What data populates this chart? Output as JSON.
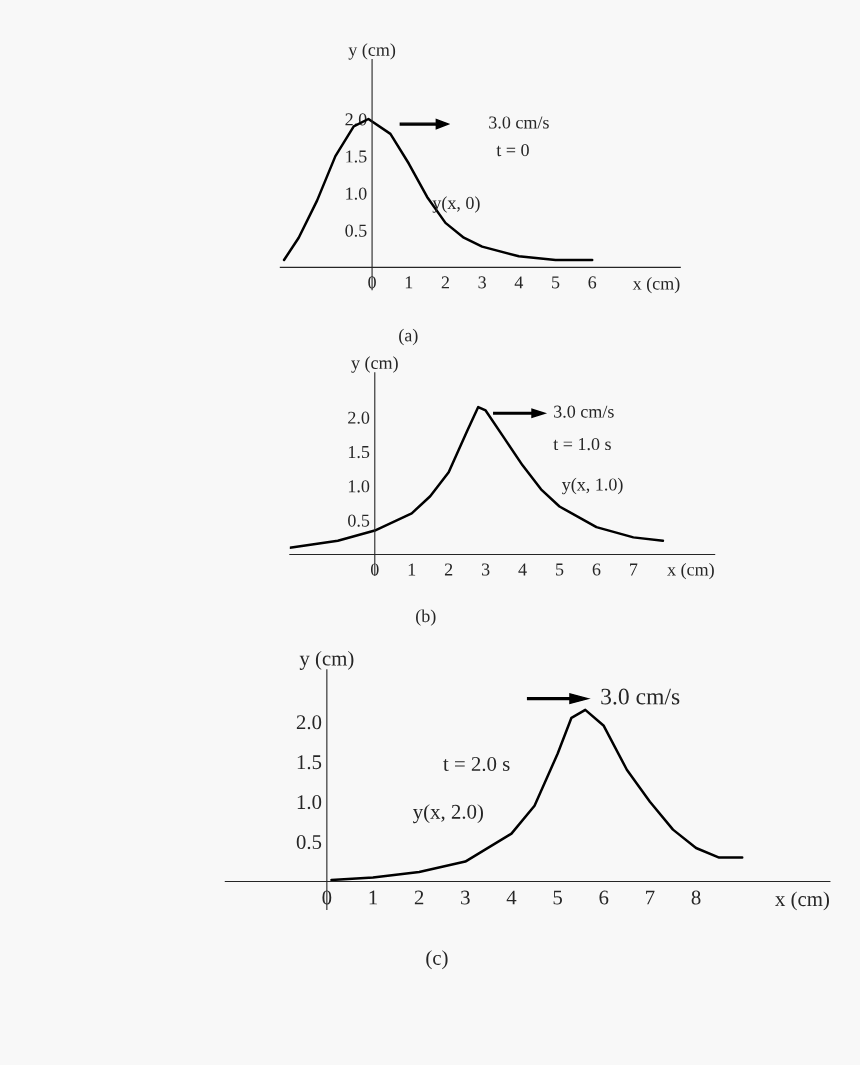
{
  "chart_data": [
    {
      "type": "line",
      "title": "(a)",
      "xlabel": "x (cm)",
      "ylabel": "y (cm)",
      "xlim": [
        -2.5,
        8.4
      ],
      "ylim": [
        -0.3,
        2.8
      ],
      "xticks": [
        0,
        1,
        2,
        3,
        4,
        5,
        6
      ],
      "yticks": [
        {
          "value": 0.5,
          "label": "0.5"
        },
        {
          "value": 1,
          "label": "1.0"
        },
        {
          "value": 1.5,
          "label": "1.5"
        },
        {
          "value": 2,
          "label": "2.0"
        }
      ],
      "annotations": [
        "3.0 cm/s",
        "t = 0",
        "y(x, 0)"
      ],
      "series": [
        {
          "color": "#000000",
          "x": [
            -2.4,
            -2,
            -1.5,
            -1,
            -0.5,
            -0.1,
            0.5,
            1,
            1.5,
            2,
            2.5,
            3,
            4,
            5,
            6
          ],
          "values": [
            0.1,
            0.4,
            0.9,
            1.5,
            1.9,
            2.0,
            1.8,
            1.4,
            0.95,
            0.6,
            0.4,
            0.28,
            0.15,
            0.1,
            0.1
          ]
        }
      ]
    },
    {
      "type": "line",
      "title": "(b)",
      "xlabel": "x (cm)",
      "ylabel": "y (cm)",
      "xlim": [
        -2.3,
        9.2
      ],
      "ylim": [
        -0.3,
        2.65
      ],
      "xticks": [
        0,
        1,
        2,
        3,
        4,
        5,
        6,
        7
      ],
      "yticks": [
        {
          "value": 0.5,
          "label": "0.5"
        },
        {
          "value": 1,
          "label": "1.0"
        },
        {
          "value": 1.5,
          "label": "1.5"
        },
        {
          "value": 2,
          "label": "2.0"
        }
      ],
      "annotations": [
        "3.0 cm/s",
        "t = 1.0 s",
        "y(x, 1.0)"
      ],
      "series": [
        {
          "color": "#000000",
          "x": [
            -2.3,
            -1,
            0,
            1,
            1.5,
            2,
            2.5,
            2.8,
            3,
            3.5,
            4,
            4.5,
            5,
            6,
            7,
            7.8
          ],
          "values": [
            0.1,
            0.2,
            0.35,
            0.6,
            0.85,
            1.2,
            1.8,
            2.15,
            2.1,
            1.7,
            1.3,
            0.95,
            0.7,
            0.4,
            0.25,
            0.2
          ]
        }
      ]
    },
    {
      "type": "line",
      "title": "(c)",
      "xlabel": "x (cm)",
      "ylabel": "y (cm)",
      "xlim": [
        -2.2,
        10.9
      ],
      "ylim": [
        -0.35,
        2.65
      ],
      "xticks": [
        0,
        1,
        2,
        3,
        4,
        5,
        6,
        7,
        8
      ],
      "yticks": [
        {
          "value": 0.5,
          "label": "0.5"
        },
        {
          "value": 1,
          "label": "1.0"
        },
        {
          "value": 1.5,
          "label": "1.5"
        },
        {
          "value": 2,
          "label": "2.0"
        }
      ],
      "annotations": [
        "3.0 cm/s",
        "t = 2.0 s",
        "y(x, 2.0)"
      ],
      "series": [
        {
          "color": "#000000",
          "x": [
            0.1,
            1,
            2,
            3,
            4,
            4.5,
            5,
            5.3,
            5.6,
            6,
            6.5,
            7,
            7.5,
            8,
            8.5,
            9
          ],
          "values": [
            0.02,
            0.05,
            0.12,
            0.25,
            0.6,
            0.95,
            1.6,
            2.05,
            2.15,
            1.95,
            1.4,
            1.0,
            0.65,
            0.42,
            0.3,
            0.3
          ]
        }
      ]
    }
  ]
}
